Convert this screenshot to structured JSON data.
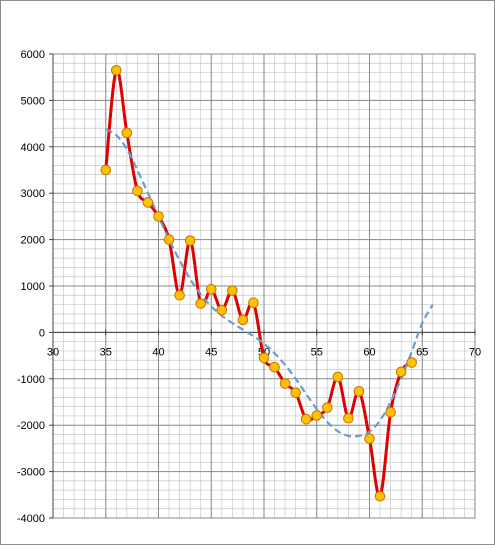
{
  "chart_data": {
    "type": "line",
    "title": "",
    "xlabel": "",
    "ylabel": "",
    "xlim": [
      30,
      70
    ],
    "ylim": [
      -4000,
      6000
    ],
    "x_major_step": 5,
    "y_major_step": 1000,
    "x_minor_step": 1,
    "y_minor_step": 200,
    "grid": true,
    "legend": "none",
    "x_ticks": [
      "30",
      "35",
      "40",
      "45",
      "50",
      "55",
      "60",
      "65",
      "70"
    ],
    "y_ticks": [
      "6000",
      "5000",
      "4000",
      "3000",
      "2000",
      "1000",
      "0",
      "-1000",
      "-2000",
      "-3000",
      "-4000"
    ],
    "series": [
      {
        "style": "smoothed line with markers",
        "color": "#e00000",
        "marker_fill": "#ffc000",
        "marker_edge": "#c07800",
        "x": [
          35,
          36,
          37,
          38,
          39,
          40,
          41,
          42,
          43,
          44,
          45,
          46,
          47,
          48,
          49,
          50,
          51,
          52,
          53,
          54,
          55,
          56,
          57,
          58,
          59,
          60,
          61,
          62,
          63,
          64
        ],
        "y": [
          3500,
          5650,
          4300,
          3050,
          2800,
          2500,
          2000,
          800,
          1980,
          620,
          930,
          480,
          900,
          270,
          640,
          -550,
          -750,
          -1100,
          -1300,
          -1870,
          -1790,
          -1620,
          -960,
          -1850,
          -1270,
          -2290,
          -3530,
          -1720,
          -850,
          -650
        ]
      },
      {
        "style": "dashed trendline",
        "color": "#6b9bd2",
        "x": [
          35,
          36,
          37,
          38,
          39,
          40,
          41,
          42,
          43,
          44,
          45,
          46,
          47,
          48,
          49,
          50,
          51,
          52,
          53,
          54,
          55,
          56,
          57,
          58,
          59,
          60,
          61,
          62,
          63,
          64,
          65,
          66
        ],
        "y": [
          4380,
          4250,
          3950,
          3500,
          3000,
          2500,
          2000,
          1550,
          1150,
          820,
          560,
          360,
          200,
          60,
          -80,
          -240,
          -450,
          -700,
          -1000,
          -1330,
          -1650,
          -1930,
          -2130,
          -2230,
          -2230,
          -2140,
          -1900,
          -1500,
          -1000,
          -420,
          200,
          600
        ]
      }
    ]
  }
}
